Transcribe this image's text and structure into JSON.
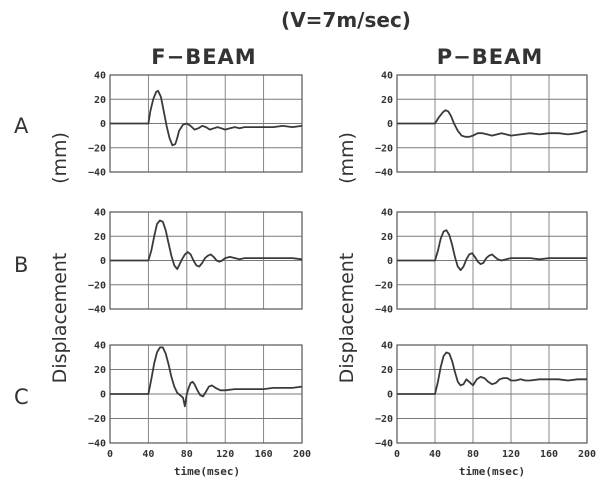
{
  "title": "(V=7m/sec)",
  "columns": [
    "F−BEAM",
    "P−BEAM"
  ],
  "row_labels": [
    "A",
    "B",
    "C"
  ],
  "ylabel_word": "Displacement",
  "ylabel_unit": "(mm)",
  "xlabel": "time(msec)",
  "chart_data": [
    {
      "type": "line",
      "row": "A",
      "column": "F−BEAM",
      "xlabel": "",
      "ylabel": "",
      "xlim": [
        0,
        200
      ],
      "ylim": [
        -40,
        40
      ],
      "grid": true,
      "xticks": [],
      "yticks": [
        40,
        20,
        0,
        -20,
        -40
      ],
      "ytick_labels": [
        "40",
        "20",
        "0",
        "−20",
        "−40"
      ],
      "series": [
        {
          "x": [
            0,
            40,
            42,
            45,
            48,
            50,
            53,
            56,
            59,
            62,
            65,
            68,
            70,
            72,
            76,
            80,
            84,
            88,
            92,
            96,
            100,
            104,
            108,
            112,
            116,
            120,
            125,
            130,
            135,
            140,
            145,
            150,
            160,
            170,
            180,
            190,
            200
          ],
          "y": [
            0,
            0,
            10,
            20,
            26,
            27,
            22,
            10,
            -2,
            -12,
            -18,
            -17,
            -12,
            -6,
            -1,
            0,
            -2,
            -5,
            -4,
            -2,
            -3,
            -5,
            -4,
            -3,
            -4,
            -5,
            -4,
            -3,
            -4,
            -3,
            -3,
            -3,
            -3,
            -3,
            -2,
            -3,
            -2
          ]
        }
      ]
    },
    {
      "type": "line",
      "row": "A",
      "column": "P−BEAM",
      "xlabel": "",
      "ylabel": "",
      "xlim": [
        0,
        200
      ],
      "ylim": [
        -40,
        40
      ],
      "grid": true,
      "xticks": [],
      "yticks": [
        40,
        20,
        0,
        -20,
        -40
      ],
      "ytick_labels": [
        "40",
        "20",
        "0",
        "−20",
        "−40"
      ],
      "series": [
        {
          "x": [
            0,
            40,
            44,
            48,
            51,
            54,
            57,
            60,
            64,
            68,
            72,
            76,
            80,
            85,
            90,
            95,
            100,
            110,
            120,
            130,
            140,
            150,
            160,
            170,
            180,
            190,
            195,
            200
          ],
          "y": [
            0,
            0,
            5,
            9,
            11,
            10,
            6,
            0,
            -6,
            -10,
            -11,
            -11,
            -10,
            -8,
            -8,
            -9,
            -10,
            -8,
            -10,
            -9,
            -8,
            -9,
            -8,
            -8,
            -9,
            -8,
            -7,
            -6
          ]
        }
      ]
    },
    {
      "type": "line",
      "row": "B",
      "column": "F−BEAM",
      "xlabel": "",
      "ylabel": "",
      "xlim": [
        0,
        200
      ],
      "ylim": [
        -40,
        40
      ],
      "grid": true,
      "xticks": [],
      "yticks": [
        40,
        20,
        0,
        -20,
        -40
      ],
      "ytick_labels": [
        "40",
        "20",
        "0",
        "−20",
        "−40"
      ],
      "series": [
        {
          "x": [
            0,
            40,
            43,
            46,
            49,
            52,
            55,
            58,
            61,
            64,
            67,
            70,
            72,
            75,
            78,
            81,
            84,
            87,
            90,
            93,
            96,
            99,
            102,
            105,
            108,
            111,
            114,
            117,
            120,
            125,
            130,
            135,
            140,
            145,
            150,
            160,
            170,
            180,
            190,
            200
          ],
          "y": [
            0,
            0,
            8,
            20,
            30,
            33,
            32,
            25,
            14,
            4,
            -4,
            -7,
            -4,
            1,
            5,
            7,
            5,
            0,
            -4,
            -5,
            -2,
            2,
            4,
            5,
            3,
            0,
            -1,
            0,
            2,
            3,
            2,
            1,
            2,
            2,
            2,
            2,
            2,
            2,
            2,
            1
          ]
        }
      ]
    },
    {
      "type": "line",
      "row": "B",
      "column": "P−BEAM",
      "xlabel": "",
      "ylabel": "",
      "xlim": [
        0,
        200
      ],
      "ylim": [
        -40,
        40
      ],
      "grid": true,
      "xticks": [],
      "yticks": [
        40,
        20,
        0,
        -20,
        -40
      ],
      "ytick_labels": [
        "40",
        "20",
        "0",
        "−20",
        "−40"
      ],
      "series": [
        {
          "x": [
            0,
            40,
            43,
            46,
            49,
            52,
            55,
            58,
            61,
            64,
            67,
            70,
            73,
            76,
            79,
            82,
            85,
            88,
            91,
            94,
            97,
            100,
            103,
            106,
            110,
            115,
            120,
            130,
            140,
            150,
            160,
            170,
            180,
            190,
            200
          ],
          "y": [
            0,
            0,
            8,
            18,
            24,
            25,
            21,
            13,
            3,
            -5,
            -8,
            -5,
            1,
            5,
            6,
            3,
            -1,
            -3,
            -2,
            2,
            4,
            5,
            3,
            1,
            0,
            1,
            2,
            2,
            2,
            1,
            2,
            2,
            2,
            2,
            2
          ]
        }
      ]
    },
    {
      "type": "line",
      "row": "C",
      "column": "F−BEAM",
      "xlabel": "time(msec)",
      "ylabel": "",
      "xlim": [
        0,
        200
      ],
      "ylim": [
        -40,
        40
      ],
      "grid": true,
      "xticks": [
        0,
        40,
        80,
        120,
        160,
        200
      ],
      "yticks": [
        40,
        20,
        0,
        -20,
        -40
      ],
      "ytick_labels": [
        "40",
        "20",
        "0",
        "−20",
        "−40"
      ],
      "series": [
        {
          "x": [
            0,
            40,
            43,
            46,
            49,
            52,
            55,
            58,
            61,
            64,
            67,
            70,
            73,
            76,
            78,
            80,
            82,
            84,
            86,
            88,
            91,
            94,
            97,
            100,
            103,
            106,
            110,
            115,
            120,
            130,
            140,
            150,
            160,
            170,
            180,
            190,
            200
          ],
          "y": [
            0,
            0,
            12,
            25,
            34,
            38,
            38,
            33,
            24,
            14,
            6,
            1,
            -1,
            -3,
            -10,
            0,
            5,
            9,
            10,
            8,
            3,
            -1,
            -2,
            2,
            6,
            7,
            5,
            3,
            3,
            4,
            4,
            4,
            4,
            5,
            5,
            5,
            6
          ]
        }
      ]
    },
    {
      "type": "line",
      "row": "C",
      "column": "P−BEAM",
      "xlabel": "time(msec)",
      "ylabel": "",
      "xlim": [
        0,
        200
      ],
      "ylim": [
        -40,
        40
      ],
      "grid": true,
      "xticks": [
        0,
        40,
        80,
        120,
        160,
        200
      ],
      "yticks": [
        40,
        20,
        0,
        -20,
        -40
      ],
      "ytick_labels": [
        "40",
        "20",
        "0",
        "−20",
        "−40"
      ],
      "series": [
        {
          "x": [
            0,
            40,
            43,
            46,
            49,
            52,
            55,
            58,
            61,
            64,
            67,
            70,
            73,
            76,
            80,
            84,
            88,
            92,
            96,
            100,
            104,
            108,
            112,
            116,
            120,
            125,
            130,
            135,
            140,
            150,
            160,
            170,
            180,
            190,
            200
          ],
          "y": [
            0,
            0,
            10,
            22,
            31,
            34,
            33,
            27,
            18,
            10,
            7,
            8,
            12,
            10,
            7,
            12,
            14,
            13,
            10,
            8,
            9,
            12,
            13,
            13,
            11,
            11,
            12,
            11,
            11,
            12,
            12,
            12,
            11,
            12,
            12
          ]
        }
      ]
    }
  ]
}
